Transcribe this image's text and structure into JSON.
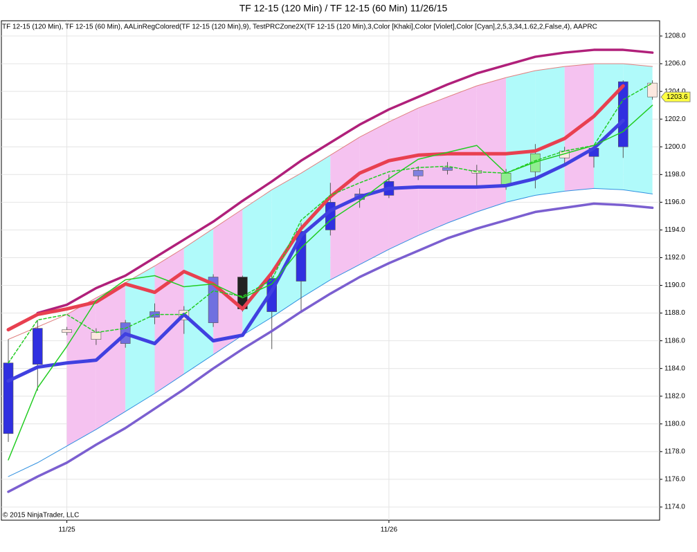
{
  "chart_data": {
    "type": "candlestick",
    "title": "TF 12-15 (120 Min) / TF 12-15 (60 Min)  11/26/15",
    "indicator_label": "TF 12-15 (120 Min), TF 12-15 (60 Min), AALinRegColored(TF 12-15 (120 Min),9), TestPRCZone2X(TF 12-15 (120 Min),3,Color [Khaki],Color [Violet],Color [Cyan],2,5,3,34,1.62,2,False,4), AAPRC",
    "copyright": "© 2015 NinjaTrader, LLC",
    "categories": [
      null,
      null,
      "11/25",
      null,
      null,
      null,
      null,
      null,
      null,
      null,
      null,
      null,
      null,
      "11/26",
      null,
      null,
      null,
      null,
      null,
      null,
      null,
      null,
      null
    ],
    "ylim": [
      1173.05,
      1209.1
    ],
    "yticks": [
      {
        "value": 1174,
        "label": "1174.0"
      },
      {
        "value": 1176,
        "label": "1176.0"
      },
      {
        "value": 1178,
        "label": "1178.0"
      },
      {
        "value": 1180,
        "label": "1180.0"
      },
      {
        "value": 1182,
        "label": "1182.0"
      },
      {
        "value": 1184,
        "label": "1184.0"
      },
      {
        "value": 1186,
        "label": "1186.0"
      },
      {
        "value": 1188,
        "label": "1188.0"
      },
      {
        "value": 1190,
        "label": "1190.0"
      },
      {
        "value": 1192,
        "label": "1192.0"
      },
      {
        "value": 1194,
        "label": "1194.0"
      },
      {
        "value": 1196,
        "label": "1196.0"
      },
      {
        "value": 1198,
        "label": "1198.0"
      },
      {
        "value": 1200,
        "label": "1200.0"
      },
      {
        "value": 1202,
        "label": "1202.0"
      },
      {
        "value": 1204,
        "label": "1204.0"
      },
      {
        "value": 1206,
        "label": "1206.0"
      },
      {
        "value": 1208,
        "label": "1208.0"
      }
    ],
    "grid": true,
    "last_price": 1203.6,
    "band": {
      "upper": [
        1186.1,
        1187.0,
        1187.9,
        1189.1,
        1190.2,
        1191.4,
        1192.7,
        1194.1,
        1195.5,
        1196.9,
        1198.1,
        1199.4,
        1200.7,
        1201.8,
        1202.8,
        1203.6,
        1204.4,
        1205.0,
        1205.5,
        1205.8,
        1206.0,
        1206.0,
        1205.8
      ],
      "lower": [
        1176.2,
        1177.2,
        1178.4,
        1179.6,
        1180.9,
        1182.2,
        1183.6,
        1185.0,
        1186.4,
        1187.7,
        1189.1,
        1190.4,
        1191.5,
        1192.6,
        1193.6,
        1194.5,
        1195.3,
        1196.0,
        1196.5,
        1196.8,
        1197.0,
        1196.9,
        1196.6
      ],
      "upper_color": "#e08080",
      "lower_color": "#3090e0",
      "zones": [
        null,
        null,
        "#f5c2f0",
        "#f5c2f0",
        "#b0fafa",
        "#f5c2f0",
        "#b0fafa",
        "#f5c2f0",
        "#b0fafa",
        "#b0fafa",
        "#b0fafa",
        "#f5c2f0",
        "#f5c2f0",
        "#f5c2f0",
        "#f5c2f0",
        "#f5c2f0",
        "#f5c2f0",
        "#b0fafa",
        "#b0fafa",
        "#f5c2f0",
        "#b0fafa",
        "#b0fafa"
      ]
    },
    "series": [
      {
        "color": "#b0207a",
        "width": 3.5,
        "values": [
          null,
          1188.0,
          1188.6,
          1189.8,
          1190.7,
          1192.0,
          1193.3,
          1194.6,
          1196.1,
          1197.5,
          1199.0,
          1200.3,
          1201.6,
          1202.7,
          1203.6,
          1204.5,
          1205.3,
          1205.9,
          1206.5,
          1206.8,
          1207.0,
          1207.0,
          1206.8
        ]
      },
      {
        "color": "#7b5fd0",
        "width": 3.5,
        "values": [
          1175.1,
          1176.2,
          1177.2,
          1178.5,
          1179.7,
          1181.1,
          1182.5,
          1184.0,
          1185.4,
          1186.7,
          1188.1,
          1189.4,
          1190.6,
          1191.6,
          1192.5,
          1193.4,
          1194.1,
          1194.7,
          1195.3,
          1195.6,
          1195.9,
          1195.8,
          1195.6
        ]
      },
      {
        "color": "#e84050",
        "width": 5,
        "values": [
          1186.8,
          1187.9,
          1188.3,
          1188.8,
          1190.1,
          1189.5,
          1191.0,
          1190.1,
          1188.3,
          1190.9,
          1194.1,
          1196.4,
          1198.1,
          1199.0,
          1199.4,
          1199.5,
          1199.5,
          1199.5,
          1199.7,
          1200.6,
          1202.2,
          1204.4,
          null
        ]
      },
      {
        "color": "#4040e0",
        "width": 5,
        "values": [
          1183.1,
          1184.1,
          1184.4,
          1184.6,
          1186.5,
          1185.8,
          1187.9,
          1186.0,
          1186.4,
          1189.6,
          1193.6,
          1195.4,
          1196.4,
          1197.0,
          1197.1,
          1197.1,
          1197.1,
          1197.2,
          1197.7,
          1198.7,
          1199.9,
          1201.9,
          null
        ]
      },
      {
        "color": "#22cc22",
        "width": 1.5,
        "values": [
          1177.4,
          1182.6,
          1185.6,
          1188.9,
          1190.4,
          1190.7,
          1189.9,
          1190.1,
          1189.1,
          1190.1,
          1192.7,
          1194.7,
          1196.1,
          1197.7,
          1199.1,
          1199.6,
          1200.1,
          1198.1,
          1198.9,
          1199.5,
          1200.1,
          1201.1,
          1203.0
        ]
      },
      {
        "color": "#22cc22",
        "width": 1.5,
        "dashed": true,
        "values": [
          1184.4,
          1187.5,
          1187.9,
          1186.6,
          1186.9,
          1187.9,
          1187.9,
          1189.6,
          1189.2,
          1190.4,
          1194.7,
          1196.5,
          1197.4,
          1198.2,
          1198.5,
          1198.6,
          1198.2,
          1198.1,
          1199.0,
          1199.7,
          1200.1,
          1203.4,
          1204.6
        ]
      }
    ],
    "candles": {
      "open": [
        1179.3,
        1184.3,
        1186.8,
        1186.6,
        1185.8,
        1187.7,
        1188.2,
        1187.3,
        1190.6,
        1188.1,
        1190.3,
        1194.0,
        1196.2,
        1196.5,
        1197.9,
        1198.3,
        1198.3,
        1197.2,
        1198.2,
        1199.7,
        1199.3,
        1200.0,
        1204.6
      ],
      "high": [
        1186.1,
        1187.5,
        1187.0,
        1186.9,
        1187.5,
        1188.7,
        1188.5,
        1190.8,
        1190.7,
        1190.8,
        1194.5,
        1197.4,
        1197.0,
        1198.0,
        1198.6,
        1198.9,
        1198.7,
        1198.4,
        1200.2,
        1200.0,
        1200.1,
        1204.8,
        1204.8
      ],
      "low": [
        1178.7,
        1182.4,
        1186.4,
        1185.7,
        1185.5,
        1187.2,
        1186.5,
        1187.0,
        1188.1,
        1185.4,
        1188.0,
        1193.6,
        1195.6,
        1196.3,
        1197.6,
        1198.0,
        1197.1,
        1196.9,
        1197.0,
        1198.8,
        1198.5,
        1199.2,
        1203.4
      ],
      "close": [
        1184.4,
        1186.9,
        1186.6,
        1186.1,
        1187.3,
        1188.1,
        1187.5,
        1190.6,
        1188.3,
        1190.5,
        1193.9,
        1196.0,
        1196.6,
        1197.5,
        1198.3,
        1198.5,
        1198.1,
        1198.1,
        1199.5,
        1199.2,
        1199.9,
        1204.7,
        1203.6
      ],
      "colors": [
        "#3030e0",
        "#3030e0",
        "#fde8e0",
        "#fde8e0",
        "#7070e0",
        "#7070e0",
        "#fde8e0",
        "#7070e0",
        "#222222",
        "#3030e0",
        "#3030e0",
        "#3030e0",
        "#6060e0",
        "#3030e0",
        "#8080e0",
        "#8080e0",
        "#fde8e0",
        "#90ee90",
        "#90ee90",
        "#fde8e0",
        "#3030e0",
        "#3030e0",
        "#fde8e0"
      ]
    },
    "price_flag_color": "#ffff40"
  }
}
